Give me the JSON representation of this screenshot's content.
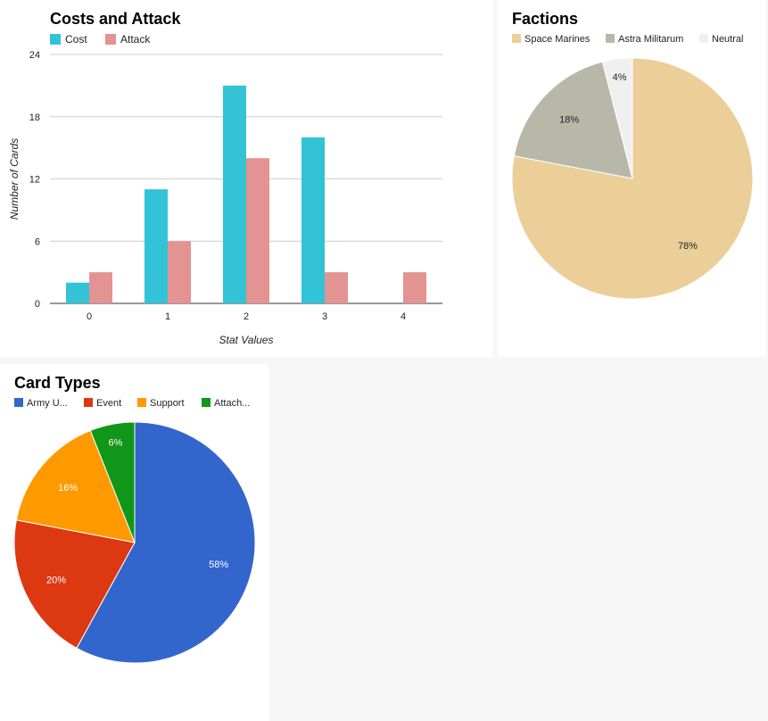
{
  "chart_data": [
    {
      "type": "bar",
      "title": "Costs and Attack",
      "xlabel": "Stat Values",
      "ylabel": "Number of Cards",
      "categories": [
        "0",
        "1",
        "2",
        "3",
        "4"
      ],
      "ylim": [
        0,
        24
      ],
      "yticks": [
        "0",
        "6",
        "12",
        "18",
        "24"
      ],
      "grid": true,
      "legend": "top-left",
      "series": [
        {
          "name": "Cost",
          "color": "#33c3d6",
          "values": [
            2,
            11,
            21,
            16,
            0
          ]
        },
        {
          "name": "Attack",
          "color": "#e29392",
          "values": [
            3,
            6,
            14,
            3,
            3
          ]
        }
      ]
    },
    {
      "type": "pie",
      "title": "Factions",
      "legend": "top",
      "slices": [
        {
          "label": "Space Marines",
          "value": 78,
          "text": "78%",
          "color": "#ecce99"
        },
        {
          "label": "Astra Militarum",
          "value": 18,
          "text": "18%",
          "color": "#b8b8a9"
        },
        {
          "label": "Neutral",
          "value": 4,
          "text": "4%",
          "color": "#efefef"
        }
      ]
    },
    {
      "type": "pie",
      "title": "Card Types",
      "legend": "top",
      "slices": [
        {
          "label": "Army U...",
          "value": 58,
          "text": "58%",
          "color": "#3366cc"
        },
        {
          "label": "Event",
          "value": 20,
          "text": "20%",
          "color": "#dc3912"
        },
        {
          "label": "Support",
          "value": 16,
          "text": "16%",
          "color": "#ff9900"
        },
        {
          "label": "Attach...",
          "value": 6,
          "text": "6%",
          "color": "#109618"
        }
      ]
    }
  ]
}
